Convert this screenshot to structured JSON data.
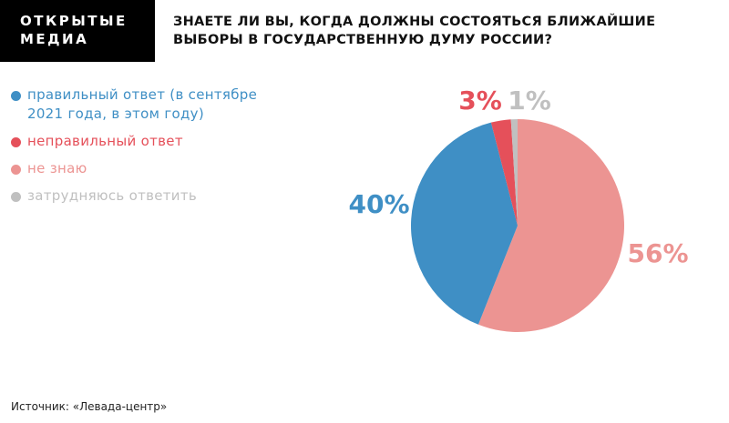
{
  "logo": [
    "ОТКРЫТЫЕ",
    "МЕДИА"
  ],
  "source": "Источник: «Левада-центр»",
  "chart_data": {
    "type": "pie",
    "title": "ЗНАЕТЕ ЛИ ВЫ, КОГДА ДОЛЖНЫ СОСТОЯТЬСЯ БЛИЖАЙШИЕ ВЫБОРЫ В ГОСУДАРСТВЕННУЮ ДУМУ РОССИИ?",
    "categories": [
      "правильный ответ (в сентябре 2021 года, в этом году)",
      "неправильный ответ",
      "не знаю",
      "затрудняюсь ответить"
    ],
    "values": [
      40,
      3,
      56,
      1
    ],
    "value_labels": [
      "40%",
      "3%",
      "56%",
      "1%"
    ],
    "colors": [
      "#3f8fc5",
      "#e5505a",
      "#ec9492",
      "#c0c0c0"
    ]
  }
}
